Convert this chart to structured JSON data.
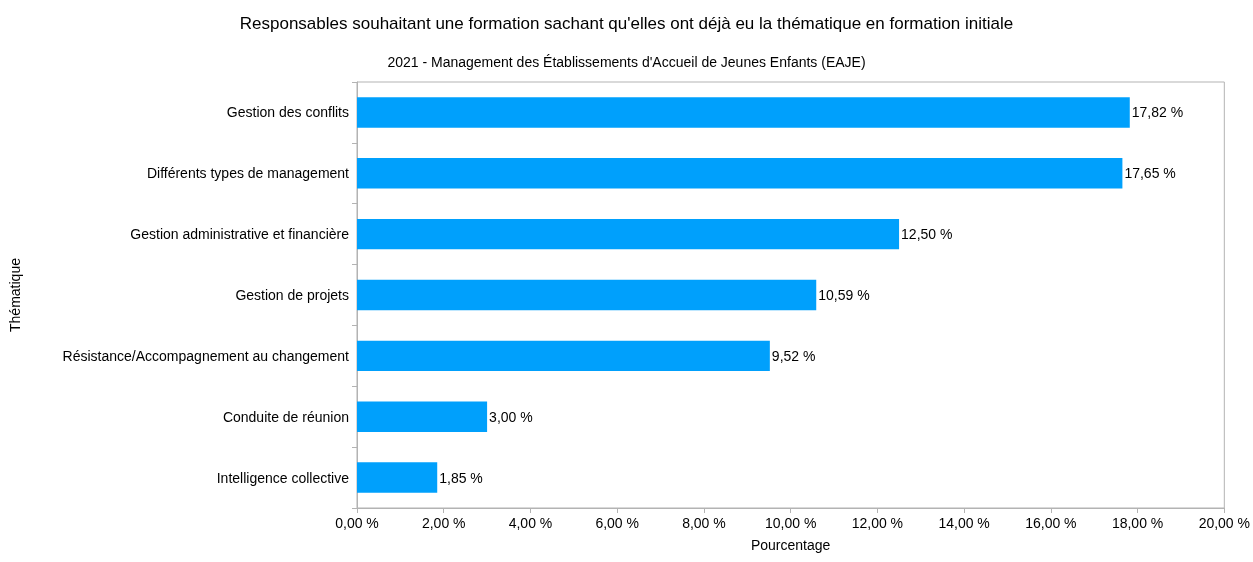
{
  "chart_data": {
    "type": "bar",
    "orientation": "horizontal",
    "title": "Responsables souhaitant une formation sachant qu'elles ont déjà eu la thématique en formation initiale",
    "subtitle": "2021 - Management des Établissements d'Accueil de Jeunes Enfants (EAJE)",
    "xlabel": "Pourcentage",
    "ylabel": "Thématique",
    "categories": [
      "Gestion des conflits",
      "Différents types de management",
      "Gestion administrative et financière",
      "Gestion de projets",
      "Résistance/Accompagnement au changement",
      "Conduite de réunion",
      "Intelligence collective"
    ],
    "values": [
      17.82,
      17.65,
      12.5,
      10.59,
      9.52,
      3.0,
      1.85
    ],
    "value_labels": [
      "17,82 %",
      "17,65 %",
      "12,50 %",
      "10,59 %",
      "9,52 %",
      "3,00 %",
      "1,85 %"
    ],
    "color": "#00a0fc",
    "xlim": [
      0,
      20
    ],
    "xticks": [
      {
        "value": 0,
        "label": "0,00 %"
      },
      {
        "value": 2,
        "label": "2,00 %"
      },
      {
        "value": 4,
        "label": "4,00 %"
      },
      {
        "value": 6,
        "label": "6,00 %"
      },
      {
        "value": 8,
        "label": "8,00 %"
      },
      {
        "value": 10,
        "label": "10,00 %"
      },
      {
        "value": 12,
        "label": "12,00 %"
      },
      {
        "value": 14,
        "label": "14,00 %"
      },
      {
        "value": 16,
        "label": "16,00 %"
      },
      {
        "value": 18,
        "label": "18,00 %"
      },
      {
        "value": 20,
        "label": "20,00 %"
      }
    ],
    "grid": false
  }
}
